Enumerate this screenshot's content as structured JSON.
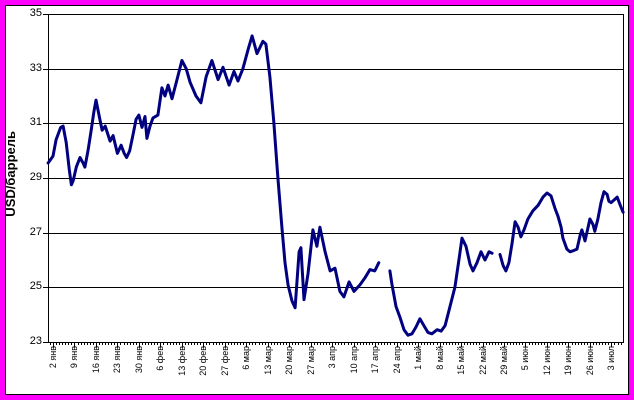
{
  "window": {
    "background": "#ffffff",
    "outer_border_color": "#ff00ff",
    "inner_border_color": "#000000"
  },
  "chart_data": {
    "type": "line",
    "title": "",
    "xlabel": "",
    "ylabel": "USD/баррель",
    "ylim": [
      23,
      35
    ],
    "y_ticks": [
      35,
      33,
      31,
      29,
      27,
      25,
      23
    ],
    "grid": "horizontal gridlines every 2 units, black 1px",
    "legend": "none",
    "x_tick_interval_days": 7,
    "x_tick_labels": [
      "2 янв",
      "9 янв",
      "16 янв",
      "23 янв",
      "30 янв",
      "6 фев",
      "13 фев",
      "20 фев",
      "27 фев",
      "6 мар",
      "13 мар",
      "20 мар",
      "27 мар",
      "3 апр",
      "10 апр",
      "17 апр",
      "24 апр",
      "1 май",
      "8 май",
      "15 май",
      "22 май",
      "29 май",
      "5 июн",
      "12 июн",
      "19 июн",
      "26 июн",
      "3 июл"
    ],
    "series": [
      {
        "name": "USD/баррель",
        "color": "#000080",
        "x_unit": "days since first tick (2 янв); weekly ticks every 7 days",
        "segments": [
          [
            [
              -1.6,
              29.55
            ],
            [
              0,
              29.8
            ],
            [
              1,
              30.4
            ],
            [
              2.5,
              30.85
            ],
            [
              3.3,
              30.9
            ],
            [
              4.3,
              30.3
            ],
            [
              5.3,
              29.3
            ],
            [
              6,
              28.75
            ],
            [
              6.6,
              28.9
            ],
            [
              7.6,
              29.4
            ],
            [
              8.8,
              29.75
            ],
            [
              9.8,
              29.55
            ],
            [
              10.4,
              29.4
            ],
            [
              11.4,
              30.0
            ],
            [
              12.4,
              30.7
            ],
            [
              13.3,
              31.4
            ],
            [
              14,
              31.85
            ],
            [
              15,
              31.3
            ],
            [
              16,
              30.75
            ],
            [
              17,
              30.9
            ],
            [
              18.6,
              30.35
            ],
            [
              19.6,
              30.55
            ],
            [
              21,
              29.9
            ],
            [
              22.2,
              30.2
            ],
            [
              23.2,
              29.9
            ],
            [
              24,
              29.75
            ],
            [
              25,
              30.0
            ],
            [
              26.1,
              30.6
            ],
            [
              27.1,
              31.15
            ],
            [
              28,
              31.3
            ],
            [
              29,
              30.85
            ],
            [
              30,
              31.25
            ],
            [
              30.6,
              30.45
            ],
            [
              31.6,
              30.9
            ],
            [
              32.6,
              31.2
            ],
            [
              34.2,
              31.3
            ],
            [
              35.5,
              32.3
            ],
            [
              36.5,
              32.0
            ],
            [
              37.5,
              32.4
            ],
            [
              38.8,
              31.9
            ],
            [
              40.4,
              32.6
            ],
            [
              42,
              33.3
            ],
            [
              43.4,
              33.0
            ],
            [
              44.7,
              32.5
            ],
            [
              46.6,
              32.0
            ],
            [
              48.2,
              31.75
            ],
            [
              49.9,
              32.7
            ],
            [
              51.8,
              33.3
            ],
            [
              53.8,
              32.6
            ],
            [
              55.4,
              33.05
            ],
            [
              57.4,
              32.4
            ],
            [
              59,
              32.9
            ],
            [
              60.3,
              32.55
            ],
            [
              61.9,
              33.0
            ],
            [
              63.6,
              33.7
            ],
            [
              64.9,
              34.2
            ],
            [
              66.5,
              33.55
            ],
            [
              68.4,
              34.0
            ],
            [
              69.4,
              33.9
            ],
            [
              70.7,
              32.7
            ],
            [
              72,
              31.0
            ],
            [
              73.3,
              29.0
            ],
            [
              74.6,
              27.2
            ],
            [
              75.6,
              25.9
            ],
            [
              76.6,
              25.1
            ],
            [
              77.9,
              24.5
            ],
            [
              78.9,
              24.25
            ],
            [
              80.2,
              26.3
            ],
            [
              80.8,
              26.45
            ],
            [
              81.8,
              24.55
            ],
            [
              83.1,
              25.5
            ],
            [
              84.7,
              27.1
            ],
            [
              86,
              26.5
            ],
            [
              87,
              27.2
            ],
            [
              88.7,
              26.3
            ],
            [
              90.3,
              25.6
            ],
            [
              91.9,
              25.7
            ],
            [
              93.5,
              24.85
            ],
            [
              94.8,
              24.65
            ],
            [
              96.5,
              25.2
            ],
            [
              98.1,
              24.85
            ],
            [
              100.1,
              25.1
            ],
            [
              101.7,
              25.35
            ],
            [
              103.3,
              25.65
            ],
            [
              104.9,
              25.6
            ],
            [
              106.2,
              25.9
            ]
          ],
          [
            [
              109.8,
              25.6
            ],
            [
              110.5,
              25.1
            ],
            [
              111.8,
              24.3
            ],
            [
              113.1,
              23.9
            ],
            [
              114.4,
              23.45
            ],
            [
              115.7,
              23.25
            ],
            [
              117,
              23.3
            ],
            [
              118.3,
              23.55
            ],
            [
              119.6,
              23.85
            ],
            [
              120.9,
              23.6
            ],
            [
              122.2,
              23.35
            ],
            [
              123.5,
              23.3
            ],
            [
              125.2,
              23.45
            ],
            [
              126.5,
              23.4
            ],
            [
              127.8,
              23.6
            ],
            [
              129.4,
              24.3
            ],
            [
              131,
              25.0
            ],
            [
              132.3,
              26.0
            ],
            [
              133.3,
              26.8
            ],
            [
              134.6,
              26.5
            ],
            [
              135.9,
              25.85
            ],
            [
              136.9,
              25.6
            ],
            [
              138.2,
              25.9
            ],
            [
              139.5,
              26.3
            ],
            [
              140.8,
              26.0
            ],
            [
              142.1,
              26.3
            ],
            [
              143.1,
              26.25
            ]
          ],
          [
            [
              145.7,
              26.2
            ],
            [
              146.7,
              25.8
            ],
            [
              147.6,
              25.6
            ],
            [
              148.6,
              25.9
            ],
            [
              149.6,
              26.6
            ],
            [
              150.6,
              27.4
            ],
            [
              151.6,
              27.2
            ],
            [
              152.5,
              26.85
            ],
            [
              153.5,
              27.1
            ],
            [
              154.8,
              27.5
            ],
            [
              156.4,
              27.8
            ],
            [
              158.1,
              28.0
            ],
            [
              159.7,
              28.3
            ],
            [
              161,
              28.45
            ],
            [
              162.3,
              28.35
            ],
            [
              163.6,
              27.9
            ],
            [
              164.6,
              27.6
            ],
            [
              165.6,
              27.2
            ],
            [
              166.2,
              26.8
            ],
            [
              167.5,
              26.4
            ],
            [
              168.5,
              26.3
            ],
            [
              169.8,
              26.35
            ],
            [
              170.8,
              26.4
            ],
            [
              171.8,
              26.9
            ],
            [
              172.4,
              27.1
            ],
            [
              173.4,
              26.7
            ],
            [
              174.4,
              27.2
            ],
            [
              175,
              27.5
            ],
            [
              176,
              27.3
            ],
            [
              176.6,
              27.05
            ],
            [
              177.6,
              27.5
            ],
            [
              178.6,
              28.1
            ],
            [
              179.6,
              28.5
            ],
            [
              180.6,
              28.4
            ],
            [
              181.2,
              28.15
            ],
            [
              181.9,
              28.1
            ],
            [
              182.9,
              28.2
            ],
            [
              183.9,
              28.3
            ],
            [
              184.9,
              28.0
            ],
            [
              185.8,
              27.75
            ]
          ]
        ]
      }
    ]
  }
}
